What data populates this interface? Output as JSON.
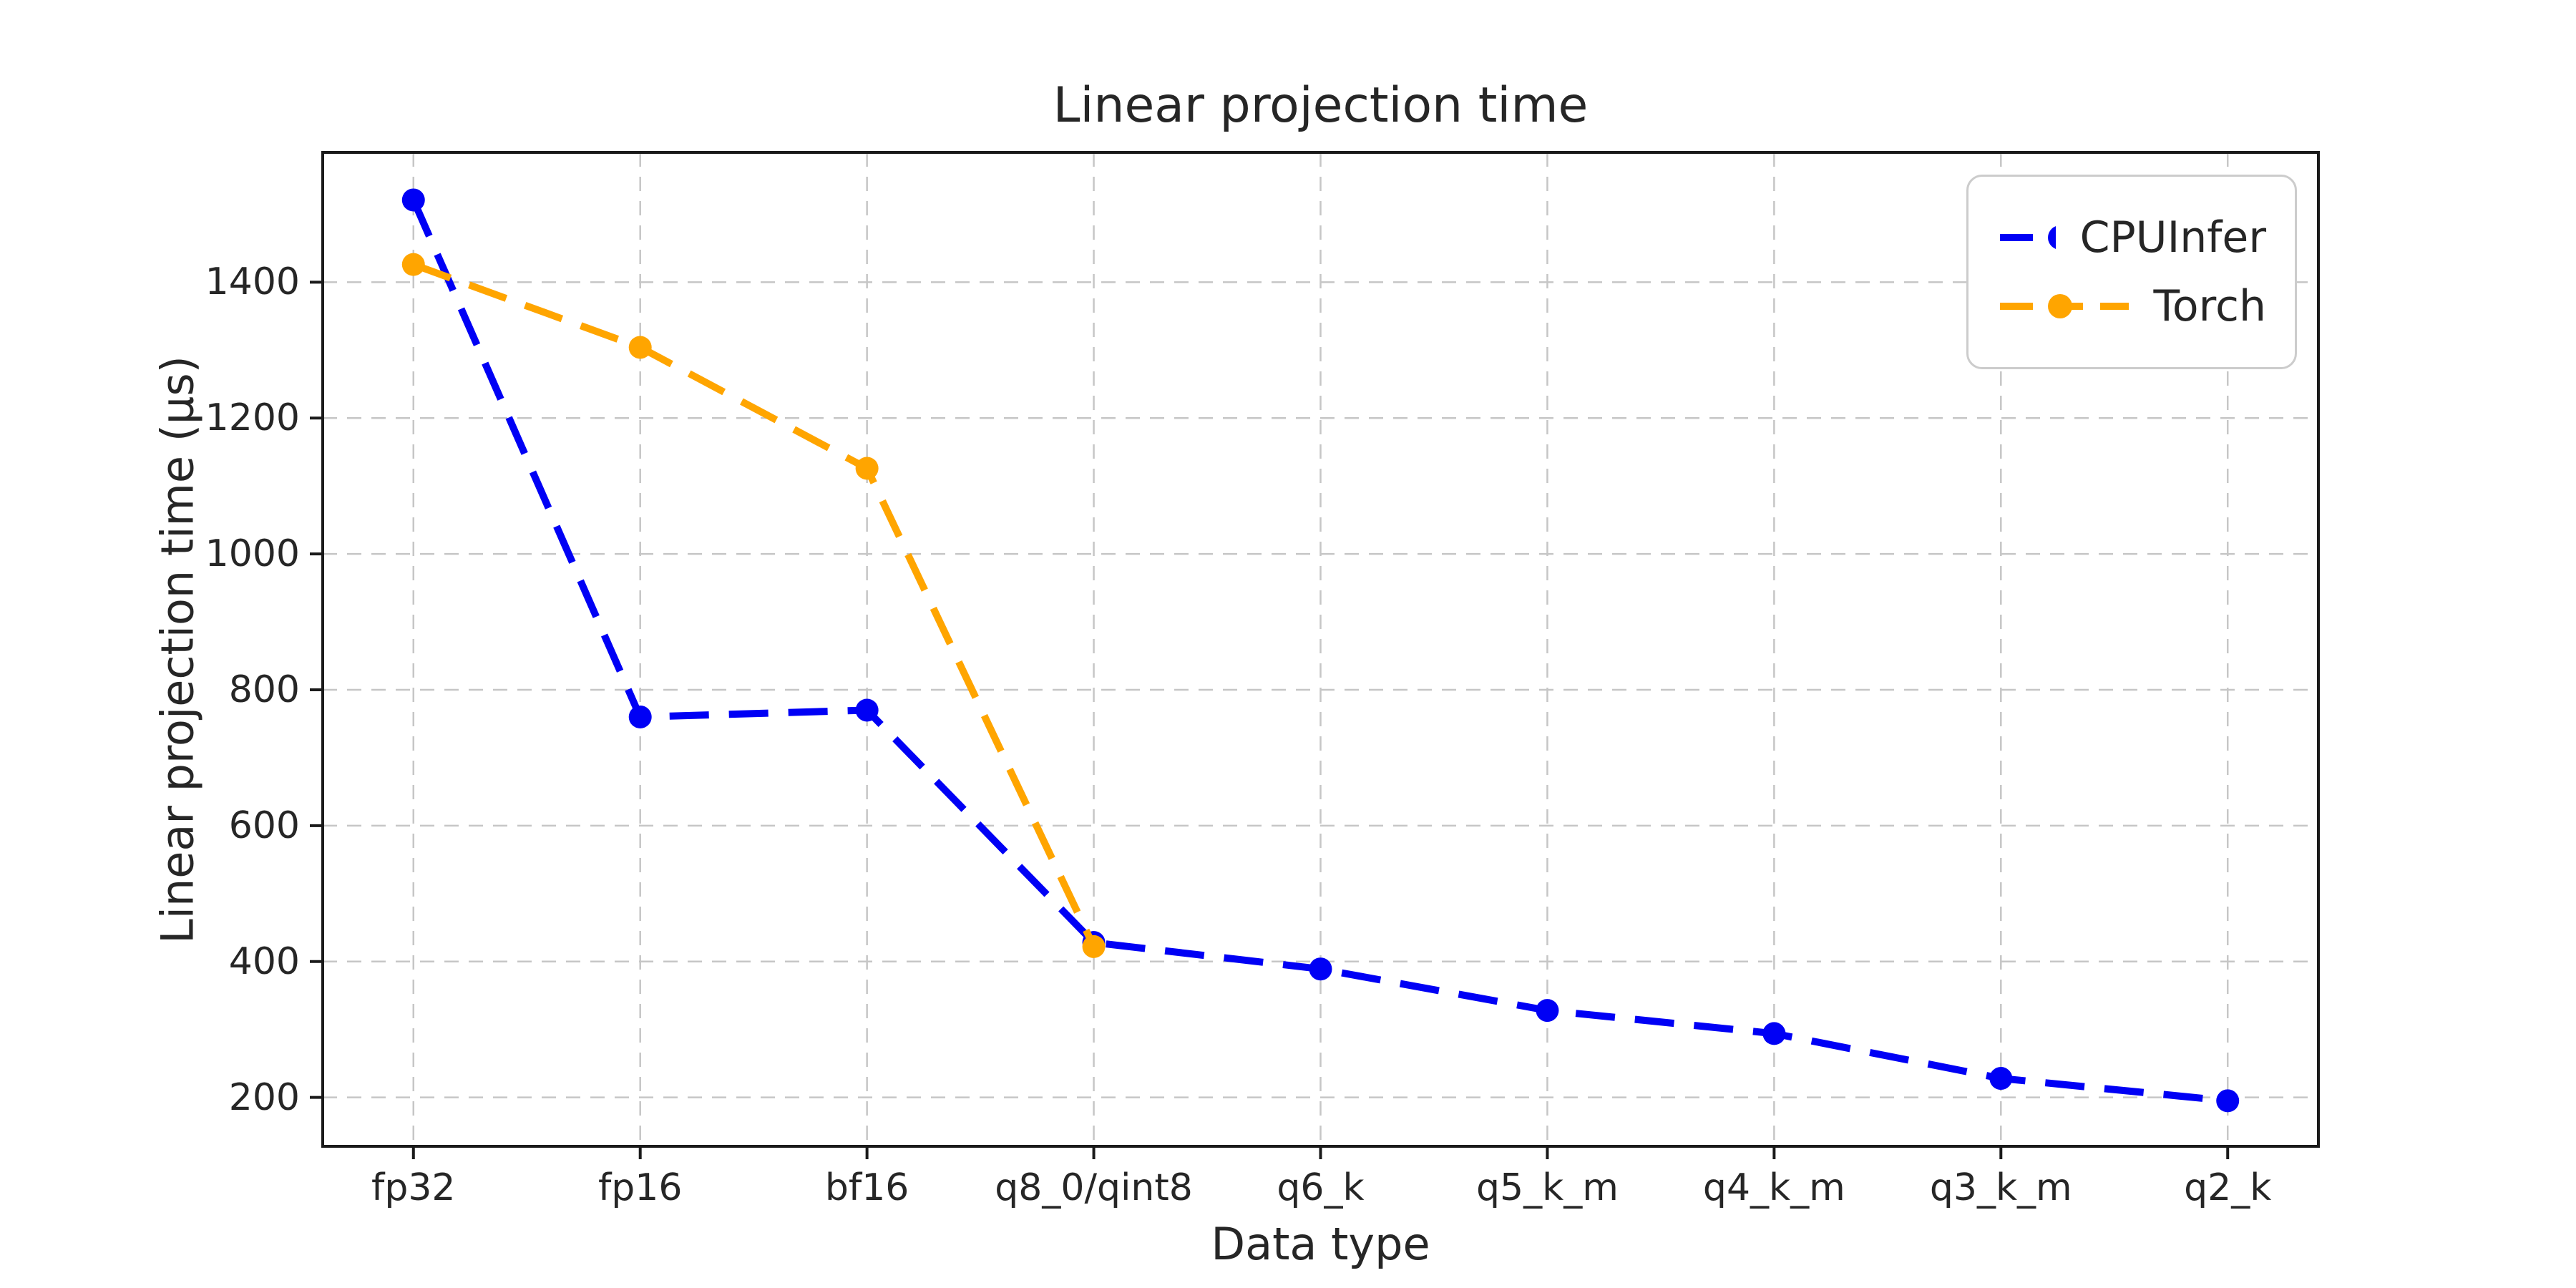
{
  "chart_data": {
    "type": "line",
    "title": "Linear projection time",
    "xlabel": "Data type",
    "ylabel": "Linear projection time (μs)",
    "categories": [
      "fp32",
      "fp16",
      "bf16",
      "q8_0/qint8",
      "q6_k",
      "q5_k_m",
      "q4_k_m",
      "q3_k_m",
      "q2_k"
    ],
    "series": [
      {
        "name": "CPUInfer",
        "color": "#0000F5",
        "marker": "circle",
        "linestyle": "dashed",
        "values": [
          1521,
          760,
          770,
          428,
          389,
          328,
          294,
          228,
          195
        ]
      },
      {
        "name": "Torch",
        "color": "#FFA500",
        "marker": "circle",
        "linestyle": "dashed",
        "values": [
          1426,
          1304,
          1126,
          422,
          null,
          null,
          null,
          null,
          null
        ]
      }
    ],
    "yticks": [
      200,
      400,
      600,
      800,
      1000,
      1200,
      1400
    ],
    "ylim": [
      128,
      1591
    ],
    "grid": true,
    "grid_color": "#c6c6c6",
    "spine_color": "#1a1a1a",
    "text_color": "#262626",
    "background": "#ffffff",
    "legend_position": "upper right"
  }
}
